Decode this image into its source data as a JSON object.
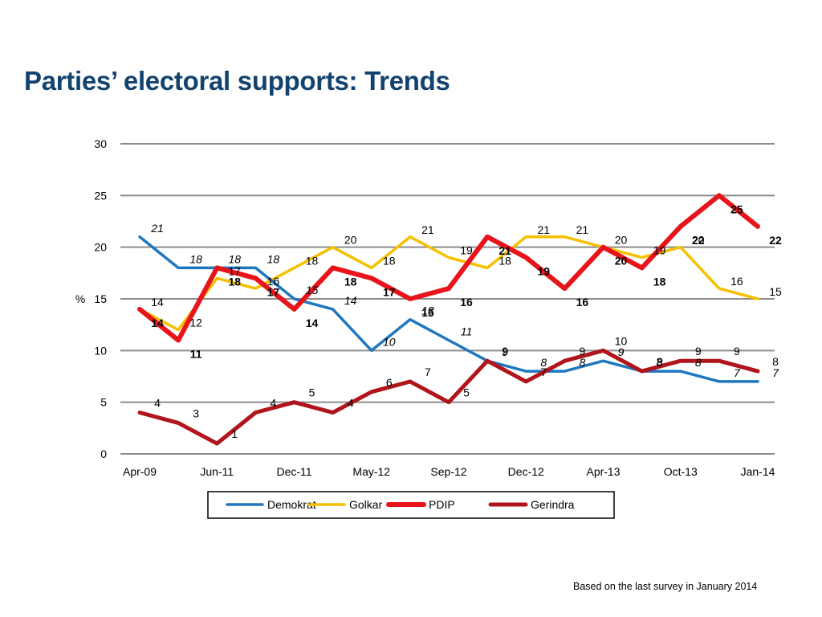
{
  "slide": {
    "title": "Parties’ electoral supports: Trends",
    "footnote": "Based on the last survey in January 2014"
  },
  "chart_data": {
    "type": "line",
    "title": "",
    "xlabel": "",
    "ylabel": "%",
    "ylim": [
      0,
      30
    ],
    "yticks": [
      0,
      5,
      10,
      15,
      20,
      25,
      30
    ],
    "grid": true,
    "legend_position": "bottom",
    "x_tick_labels": [
      "Apr-09",
      "Jun-11",
      "Dec-11",
      "May-12",
      "Sep-12",
      "Dec-12",
      "Apr-13",
      "Oct-13",
      "Jan-14"
    ],
    "series": [
      {
        "name": "Demokrat",
        "color": "#1f77c0",
        "values": [
          21,
          18,
          18,
          18,
          15,
          14,
          10,
          13,
          11,
          9,
          8,
          8,
          9,
          8,
          8,
          7,
          7
        ],
        "labels": [
          "21",
          "18",
          "18",
          "18",
          "15",
          "14",
          "10",
          "13",
          "11",
          "9",
          "8",
          "8",
          "9",
          "8",
          "8",
          "7",
          "7"
        ]
      },
      {
        "name": "Golkar",
        "color": "#f5c000",
        "values": [
          14,
          12,
          17,
          16,
          18,
          20,
          18,
          21,
          19,
          18,
          21,
          21,
          20,
          19,
          20,
          16,
          15
        ],
        "labels": [
          "14",
          "12",
          "17",
          "16",
          "18",
          "20",
          "18",
          "21",
          "19",
          "18",
          "21",
          "21",
          "20",
          "19",
          "20",
          "16",
          "15"
        ]
      },
      {
        "name": "PDIP",
        "color": "#e8141b",
        "values": [
          14,
          11,
          18,
          17,
          14,
          18,
          17,
          15,
          16,
          21,
          19,
          16,
          20,
          18,
          22,
          25,
          22
        ],
        "labels": [
          "14",
          "11",
          "18",
          "17",
          "14",
          "18",
          "17",
          "15",
          "16",
          "21",
          "19",
          "16",
          "20",
          "18",
          "22",
          "25",
          "22"
        ]
      },
      {
        "name": "Gerindra",
        "color": "#b0151b",
        "values": [
          4,
          3,
          1,
          4,
          5,
          4,
          6,
          7,
          5,
          9,
          7,
          9,
          10,
          8,
          9,
          9,
          8
        ],
        "labels": [
          "4",
          "3",
          "1",
          "4",
          "5",
          "4",
          "6",
          "7",
          "5",
          "9",
          "7",
          "9",
          "10",
          "8",
          "9",
          "9",
          "8"
        ]
      }
    ]
  }
}
